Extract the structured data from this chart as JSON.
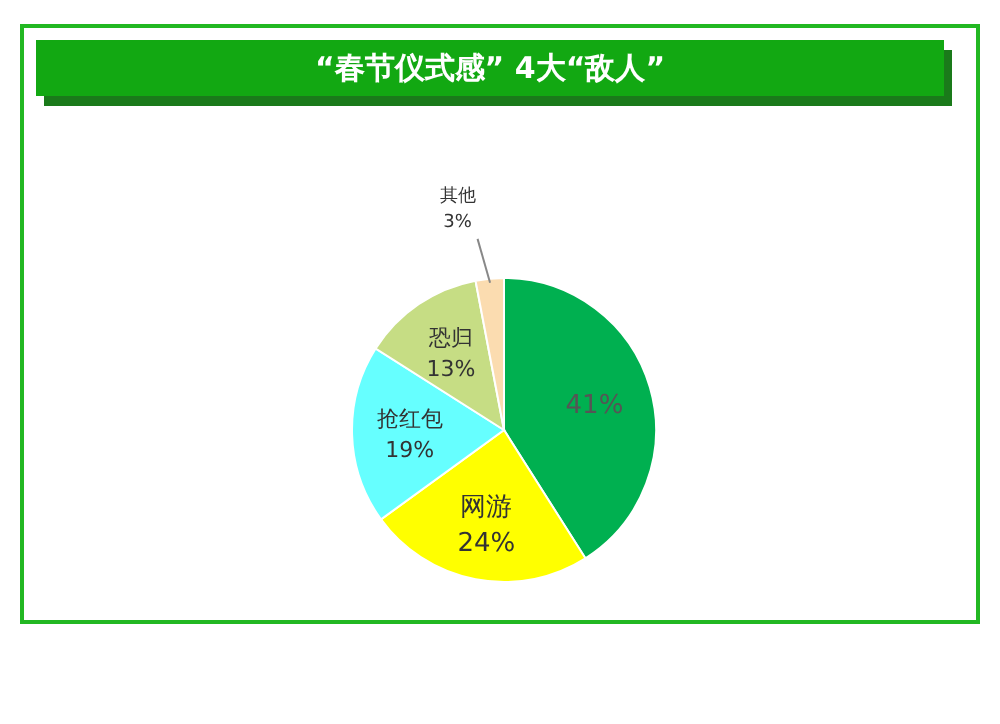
{
  "chart_data": {
    "type": "pie",
    "title": "“春节仪式感” 4大“敌人”",
    "categories": [
      null,
      "网游",
      "抢红包",
      "恐归",
      "其他"
    ],
    "values": [
      41,
      24,
      19,
      13,
      3
    ],
    "value_labels": [
      "41%",
      "24%",
      "19%",
      "13%",
      "3%"
    ],
    "colors": [
      "#00b050",
      "#ffff00",
      "#66ffff",
      "#c6dd84",
      "#fbdcb0"
    ]
  }
}
